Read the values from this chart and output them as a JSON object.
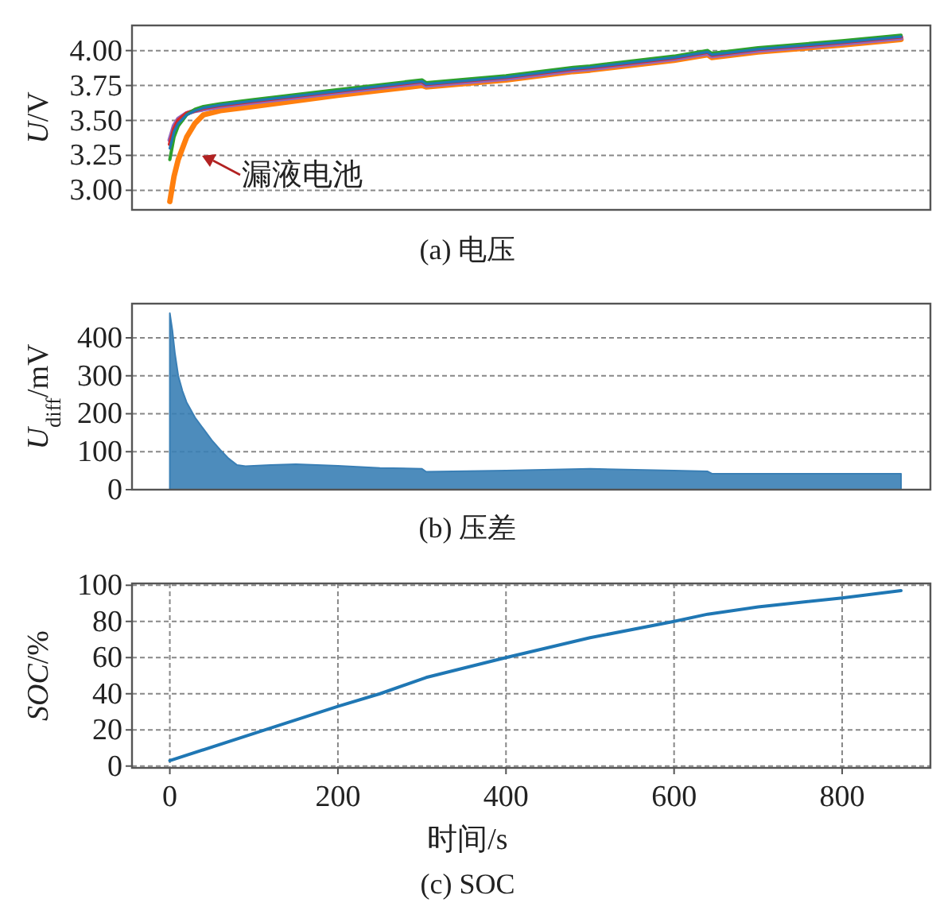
{
  "chart_data": [
    {
      "type": "line",
      "title": "(a) 电压",
      "ylabel": "*U*/V",
      "x": [
        0,
        5,
        10,
        20,
        30,
        40,
        60,
        100,
        200,
        300,
        305,
        400,
        480,
        500,
        600,
        640,
        645,
        700,
        800,
        870
      ],
      "series": [
        {
          "color": "#ff7f0e",
          "values": [
            2.92,
            3.1,
            3.22,
            3.38,
            3.48,
            3.54,
            3.57,
            3.6,
            3.68,
            3.75,
            3.74,
            3.79,
            3.85,
            3.86,
            3.93,
            3.97,
            3.95,
            3.99,
            4.04,
            4.08
          ]
        },
        {
          "color": "#9467bd",
          "values": [
            3.36,
            3.46,
            3.51,
            3.55,
            3.57,
            3.58,
            3.6,
            3.63,
            3.7,
            3.77,
            3.75,
            3.8,
            3.86,
            3.87,
            3.94,
            3.98,
            3.96,
            4.0,
            4.05,
            4.09
          ]
        },
        {
          "color": "#d62728",
          "values": [
            3.33,
            3.44,
            3.5,
            3.55,
            3.57,
            3.59,
            3.61,
            3.64,
            3.71,
            3.78,
            3.76,
            3.81,
            3.87,
            3.88,
            3.95,
            3.99,
            3.97,
            4.01,
            4.06,
            4.1
          ]
        },
        {
          "color": "#2ca02c",
          "values": [
            3.22,
            3.38,
            3.46,
            3.54,
            3.58,
            3.6,
            3.62,
            3.65,
            3.72,
            3.79,
            3.77,
            3.82,
            3.88,
            3.89,
            3.96,
            4.0,
            3.98,
            4.02,
            4.07,
            4.11
          ]
        },
        {
          "color": "#1f77b4",
          "values": [
            3.3,
            3.42,
            3.48,
            3.54,
            3.57,
            3.59,
            3.61,
            3.64,
            3.71,
            3.78,
            3.76,
            3.81,
            3.87,
            3.88,
            3.95,
            3.99,
            3.97,
            4.01,
            4.06,
            4.1
          ]
        }
      ],
      "annotations": [
        "漏液电池"
      ],
      "xlim": [
        -45,
        905
      ],
      "ylim": [
        2.86,
        4.18
      ],
      "yticks": [
        {
          "value": 3,
          "label": "3.00"
        },
        {
          "value": 3.25,
          "label": "3.25"
        },
        {
          "value": 3.5,
          "label": "3.50"
        },
        {
          "value": 3.75,
          "label": "3.75"
        },
        {
          "value": 4,
          "label": "4.00"
        }
      ],
      "grid": "y",
      "tick_labels": "y"
    },
    {
      "type": "area",
      "title": "(b) 压差",
      "ylabel": "*U*$_{diff}$/mV",
      "x": [
        0,
        3,
        6,
        10,
        15,
        20,
        30,
        40,
        50,
        60,
        70,
        80,
        90,
        120,
        150,
        200,
        250,
        300,
        305,
        400,
        500,
        600,
        640,
        645,
        700,
        800,
        870
      ],
      "series": [
        {
          "color": "#3a7fb5",
          "values": [
            465,
            420,
            360,
            300,
            260,
            230,
            190,
            160,
            130,
            105,
            82,
            65,
            62,
            65,
            67,
            63,
            57,
            55,
            47,
            50,
            55,
            50,
            48,
            42,
            42,
            42,
            42
          ]
        }
      ],
      "xlim": [
        -45,
        905
      ],
      "ylim": [
        0,
        490
      ],
      "yticks": [
        0,
        100,
        200,
        300,
        400
      ],
      "grid": "y",
      "tick_labels": "y"
    },
    {
      "type": "line",
      "title": "(c) SOC",
      "xlabel": "时间/s",
      "ylabel": "*SOC*/%",
      "x": [
        0,
        120,
        200,
        250,
        305,
        400,
        500,
        600,
        640,
        700,
        800,
        870
      ],
      "series": [
        {
          "color": "#1f77b4",
          "values": [
            3,
            21,
            33,
            40,
            49,
            60,
            71,
            80,
            84,
            88,
            93,
            97
          ]
        }
      ],
      "xlim": [
        -45,
        905
      ],
      "ylim": [
        -1,
        101
      ],
      "xticks": [
        0,
        200,
        400,
        600,
        800
      ],
      "yticks": [
        0,
        20,
        40,
        60,
        80,
        100
      ],
      "grid": true
    }
  ]
}
